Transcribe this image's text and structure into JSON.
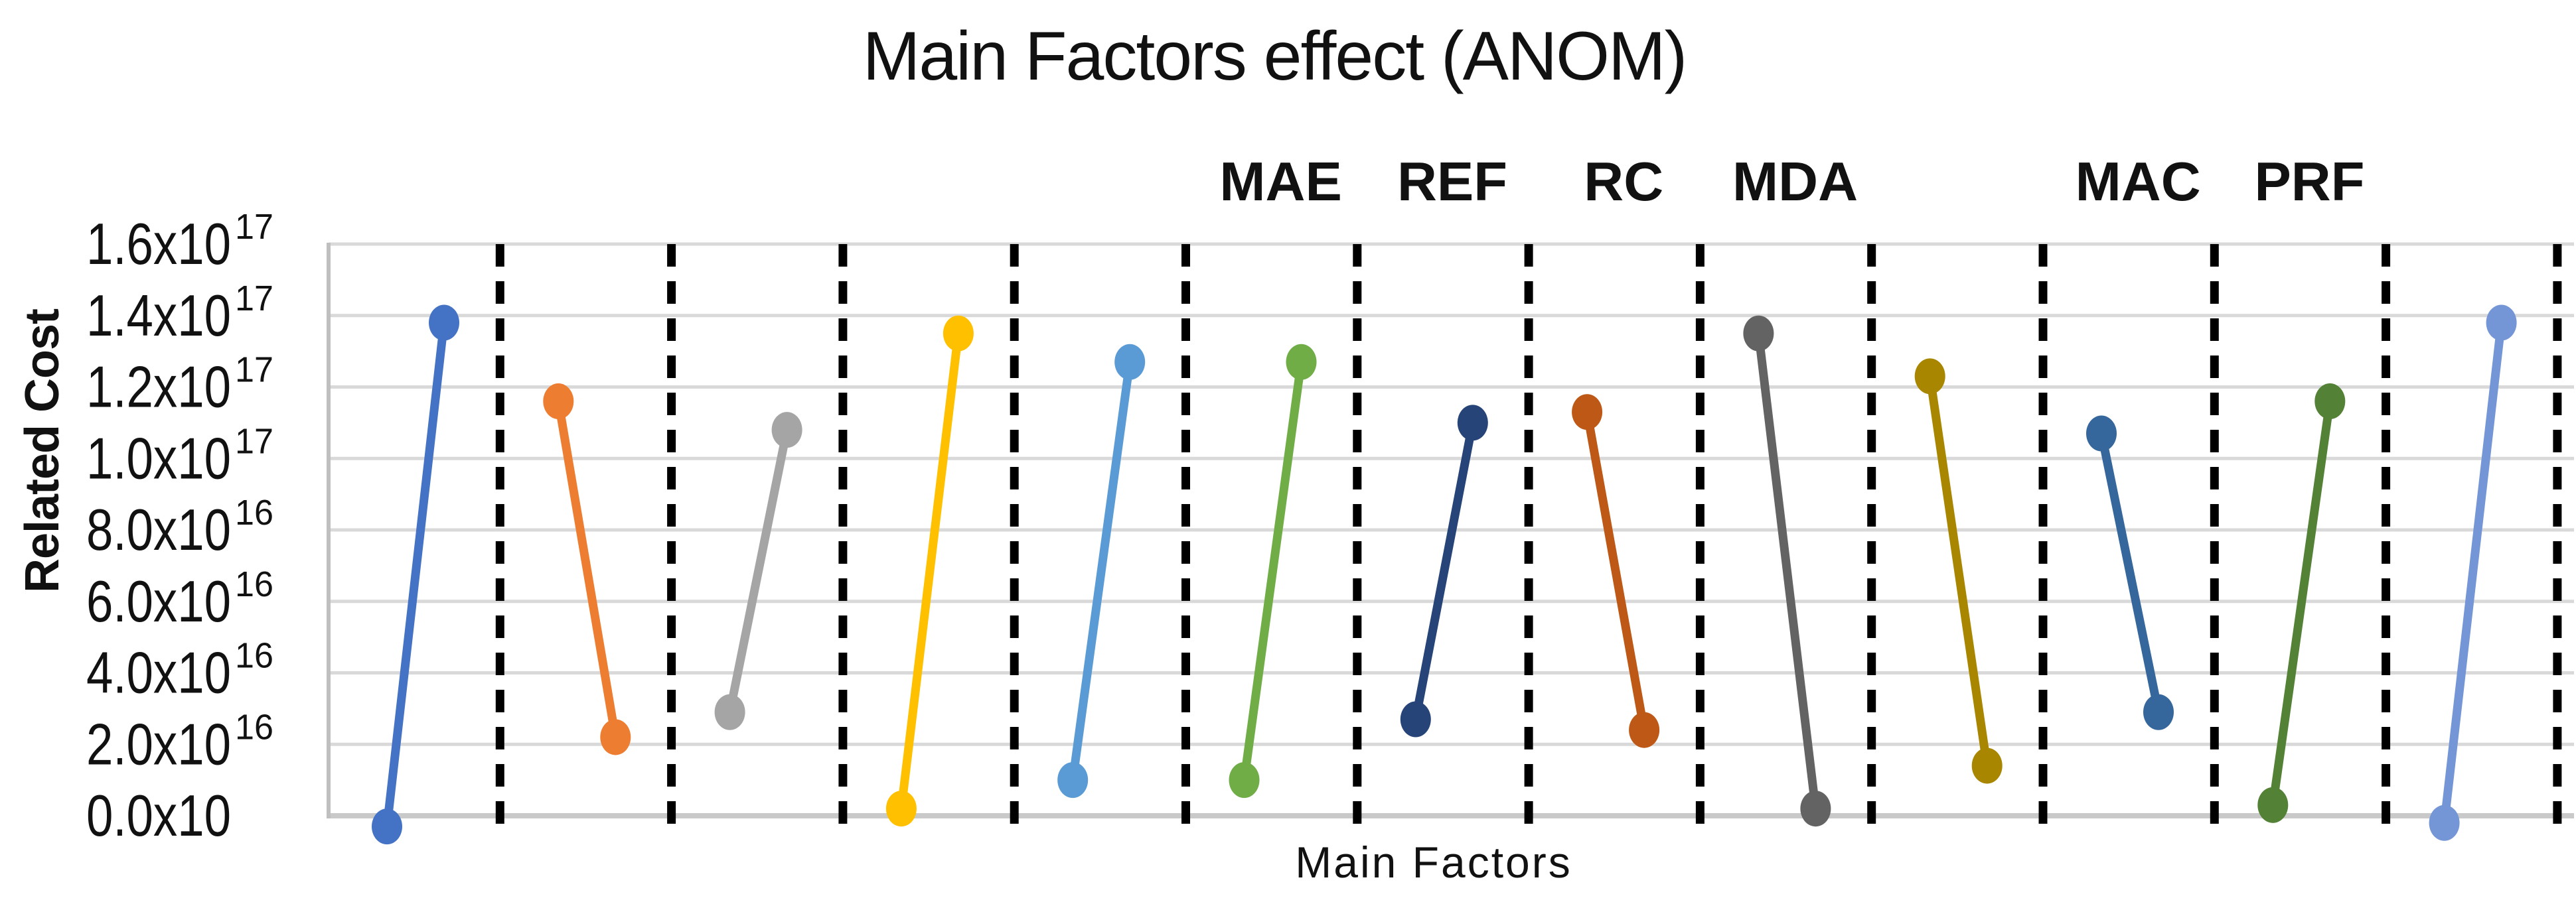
{
  "chart_data": {
    "type": "line",
    "title": "Main Factors effect (ANOM)",
    "xlabel": "Main Factors",
    "ylabel": "Related Cost",
    "legend_position": "none",
    "grid": true,
    "gridline_color": "#D9D9D9",
    "axis_line_color": "#BFBFBF",
    "separator_color": "#000000",
    "value_scale": "values are in units of 1e16",
    "ylim_x1e16": [
      -2,
      16
    ],
    "yticks": [
      {
        "main": "1.6x10",
        "sup": "17",
        "value_x1e16": 16
      },
      {
        "main": "1.4x10",
        "sup": "17",
        "value_x1e16": 14
      },
      {
        "main": "1.2x10",
        "sup": "17",
        "value_x1e16": 12
      },
      {
        "main": "1.0x10",
        "sup": "17",
        "value_x1e16": 10
      },
      {
        "main": "8.0x10",
        "sup": "16",
        "value_x1e16": 8
      },
      {
        "main": "6.0x10",
        "sup": "16",
        "value_x1e16": 6
      },
      {
        "main": "4.0x10",
        "sup": "16",
        "value_x1e16": 4
      },
      {
        "main": "2.0x10",
        "sup": "16",
        "value_x1e16": 2
      },
      {
        "main": "0.0x10",
        "sup": "",
        "value_x1e16": 0
      }
    ],
    "series": [
      {
        "label": "",
        "color": "#4472C4",
        "values_x1e16": [
          -0.3,
          13.8
        ],
        "trend": "up"
      },
      {
        "label": "",
        "color": "#ED7D31",
        "values_x1e16": [
          11.6,
          2.2
        ],
        "trend": "down"
      },
      {
        "label": "",
        "color": "#A5A5A5",
        "values_x1e16": [
          2.9,
          10.8
        ],
        "trend": "up"
      },
      {
        "label": "",
        "color": "#FFC000",
        "values_x1e16": [
          0.2,
          13.5
        ],
        "trend": "up"
      },
      {
        "label": "",
        "color": "#5B9BD5",
        "values_x1e16": [
          1.0,
          12.7
        ],
        "trend": "up"
      },
      {
        "label": "MAE",
        "color": "#70AD47",
        "values_x1e16": [
          1.0,
          12.7
        ],
        "trend": "up"
      },
      {
        "label": "REF",
        "color": "#264478",
        "values_x1e16": [
          2.7,
          11.0
        ],
        "trend": "up"
      },
      {
        "label": "RC",
        "color": "#BD5816",
        "values_x1e16": [
          11.3,
          2.4
        ],
        "trend": "down"
      },
      {
        "label": "MDA",
        "color": "#636363",
        "values_x1e16": [
          13.5,
          0.2
        ],
        "trend": "down"
      },
      {
        "label": "",
        "color": "#A98600",
        "values_x1e16": [
          12.3,
          1.4
        ],
        "trend": "down"
      },
      {
        "label": "MAC",
        "color": "#36679C",
        "values_x1e16": [
          10.7,
          2.9
        ],
        "trend": "down"
      },
      {
        "label": "PRF",
        "color": "#538135",
        "values_x1e16": [
          0.3,
          11.6
        ],
        "trend": "up"
      },
      {
        "label": "",
        "color": "#7495D6",
        "values_x1e16": [
          -0.2,
          13.8
        ],
        "trend": "up"
      }
    ]
  }
}
